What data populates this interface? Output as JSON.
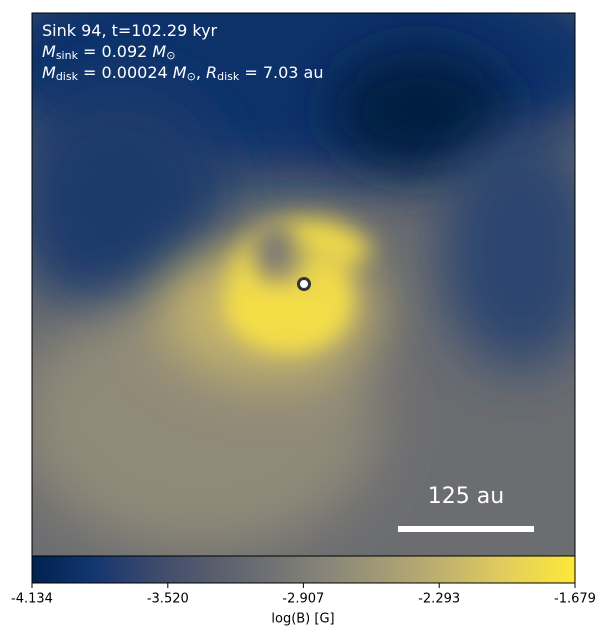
{
  "chart_data": {
    "type": "image",
    "annotation_lines": [
      [
        {
          "text": "Sink 94, t=102.29 kyr"
        }
      ],
      [
        {
          "text": "M",
          "italic": true
        },
        {
          "text": "sink",
          "sub": true
        },
        {
          "text": " = 0.092 "
        },
        {
          "text": "M",
          "italic": true
        },
        {
          "text": "⊙",
          "sub": true
        }
      ],
      [
        {
          "text": "M",
          "italic": true
        },
        {
          "text": "disk",
          "sub": true
        },
        {
          "text": " = 0.00024 "
        },
        {
          "text": "M",
          "italic": true
        },
        {
          "text": "⊙",
          "sub": true
        },
        {
          "text": ", "
        },
        {
          "text": "R",
          "italic": true
        },
        {
          "text": "disk",
          "sub": true
        },
        {
          "text": " = 7.03 au"
        }
      ]
    ],
    "scale_bar_label": "125 au",
    "colorbar": {
      "label": "log(B) [G]",
      "clim": [
        -4.134,
        -1.679
      ],
      "ticks": [
        -4.134,
        {
          "value": -3.52,
          "label": "-3.520"
        },
        -2.907,
        -2.293,
        -1.679
      ]
    }
  }
}
